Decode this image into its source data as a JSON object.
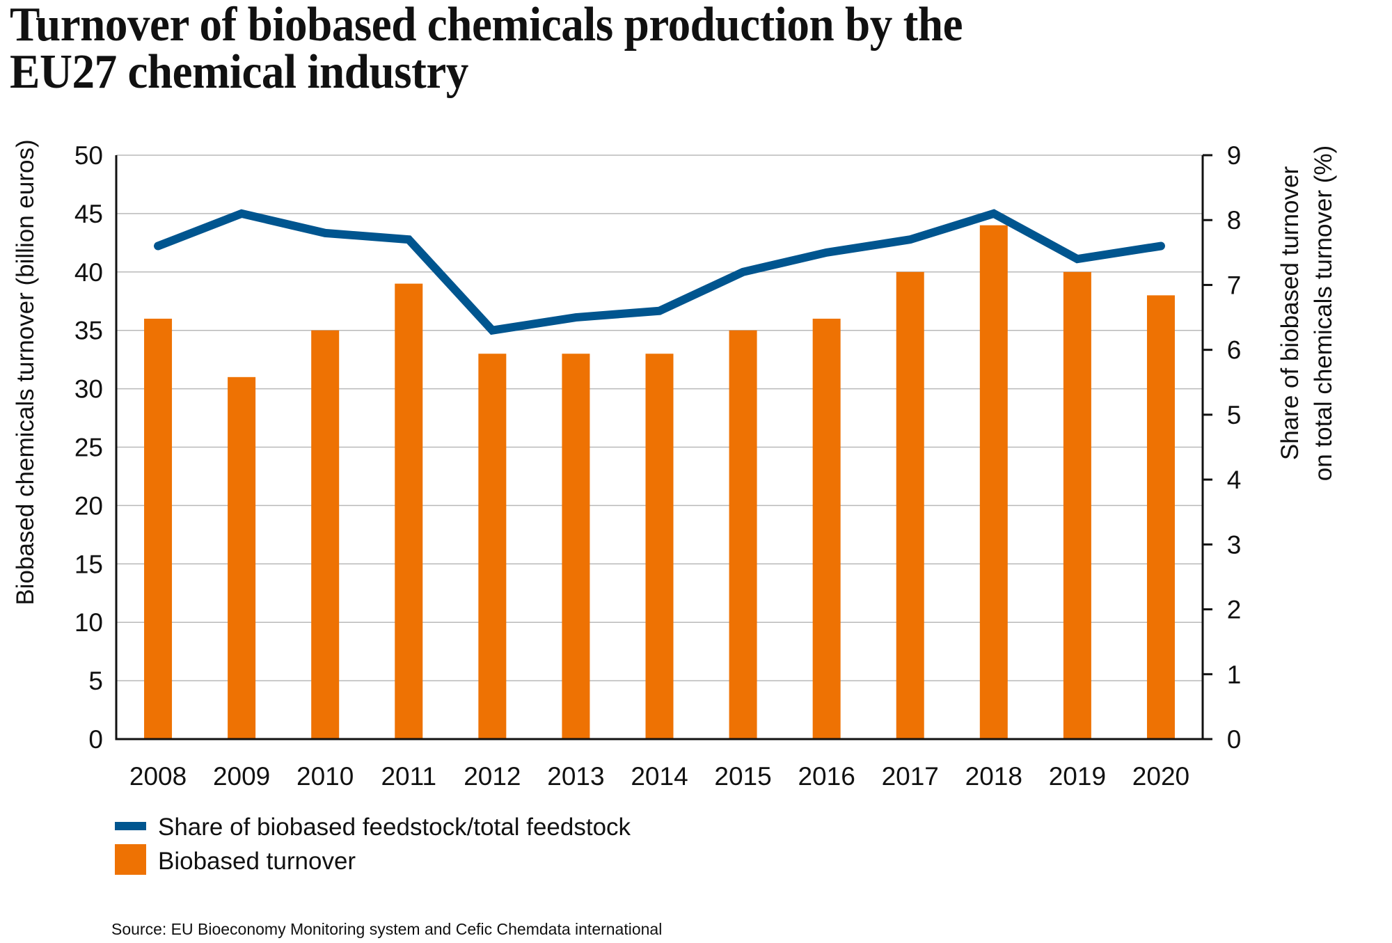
{
  "chart_data": {
    "type": "bar",
    "title": "Turnover of biobased chemicals production by the EU27 chemical industry",
    "title_lines": [
      "Turnover of biobased chemicals production by the",
      "EU27 chemical industry"
    ],
    "categories": [
      "2008",
      "2009",
      "2010",
      "2011",
      "2012",
      "2013",
      "2014",
      "2015",
      "2016",
      "2017",
      "2018",
      "2019",
      "2020"
    ],
    "series": [
      {
        "name": "Biobased turnover",
        "type": "bar",
        "axis": "left",
        "color": "#EE7203",
        "values": [
          36,
          31,
          35,
          39,
          33,
          33,
          33,
          35,
          36,
          40,
          44,
          40,
          38
        ]
      },
      {
        "name": "Share of biobased feedstock/total feedstock",
        "type": "line",
        "axis": "right",
        "color": "#00558F",
        "values": [
          7.6,
          8.1,
          7.8,
          7.7,
          6.3,
          6.5,
          6.6,
          7.2,
          7.5,
          7.7,
          8.1,
          7.4,
          7.6
        ]
      }
    ],
    "xlabel": "",
    "ylabel": "Biobased chemicals turnover (billion euros)",
    "ylim": [
      0,
      50
    ],
    "yticks": [
      "0",
      "5",
      "10",
      "15",
      "20",
      "25",
      "30",
      "35",
      "40",
      "45",
      "50"
    ],
    "y2label_lines": [
      "Share of biobased turnover",
      "on total chemicals turnover (%)"
    ],
    "y2lim": [
      0,
      9
    ],
    "y2ticks": [
      "0",
      "1",
      "2",
      "3",
      "4",
      "5",
      "6",
      "7",
      "8",
      "9"
    ],
    "grid": true,
    "legend": {
      "placement": "bottom-left",
      "entries": [
        {
          "label": "Share of biobased feedstock/total feedstock",
          "kind": "line",
          "color": "#00558F"
        },
        {
          "label": "Biobased turnover",
          "kind": "bar",
          "color": "#EE7203"
        }
      ]
    },
    "source": "Source: EU Bioeconomy Monitoring system and Cefic Chemdata international"
  }
}
